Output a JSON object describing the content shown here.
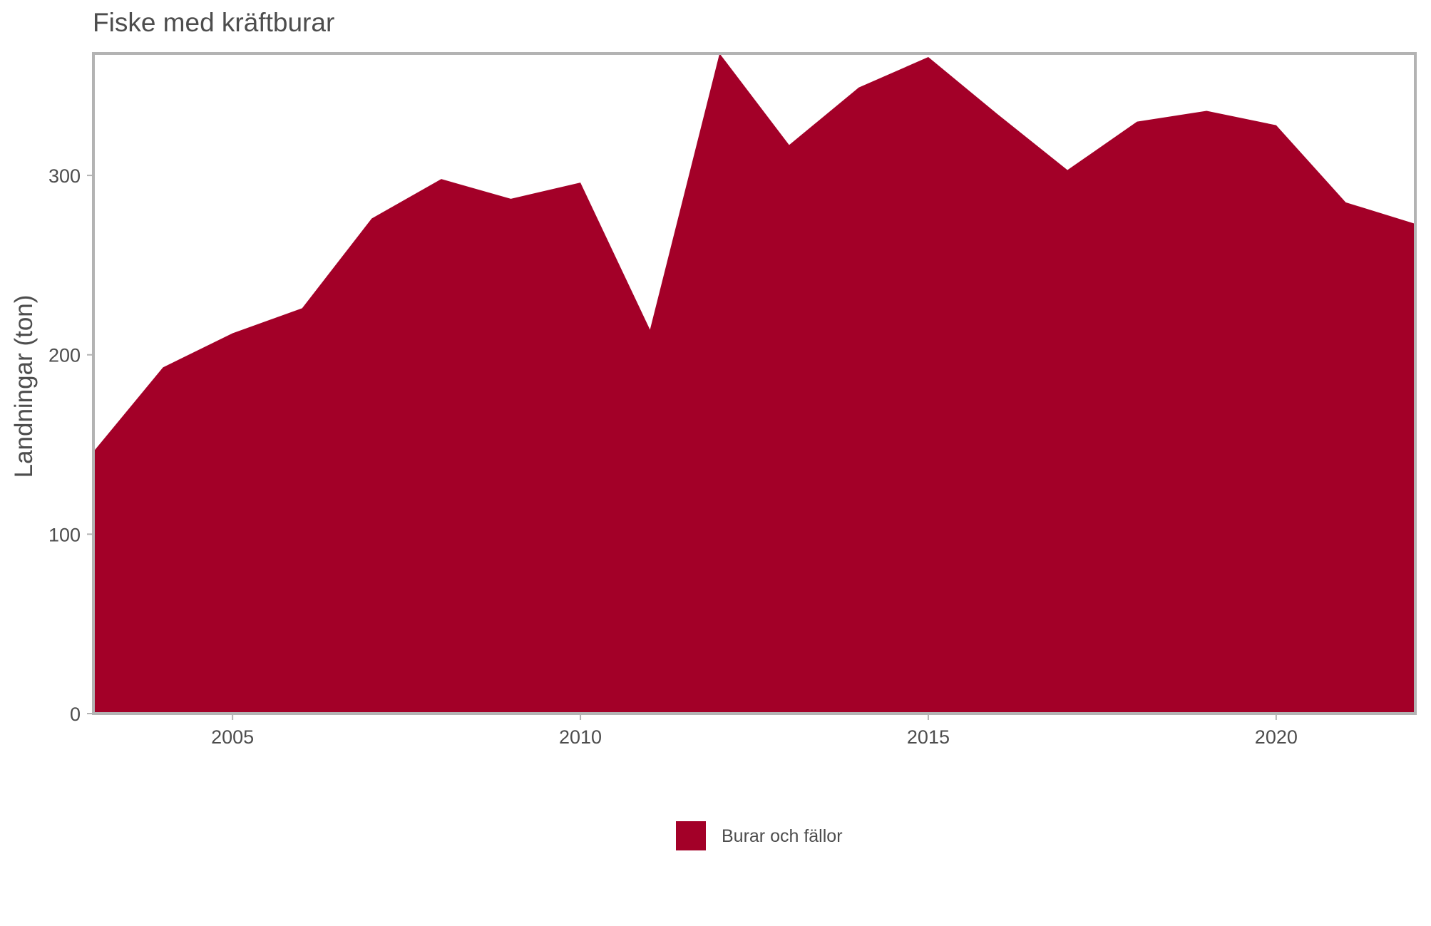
{
  "chart_data": {
    "type": "area",
    "title": "Fiske med kräftburar",
    "xlabel": "",
    "ylabel": "Landningar (ton)",
    "x": [
      2003,
      2004,
      2005,
      2006,
      2007,
      2008,
      2009,
      2010,
      2011,
      2012,
      2013,
      2014,
      2015,
      2016,
      2017,
      2018,
      2019,
      2020,
      2021,
      2022
    ],
    "series": [
      {
        "name": "Burar och fällor",
        "color": "#a30028",
        "values": [
          146,
          193,
          212,
          226,
          276,
          298,
          287,
          296,
          214,
          368,
          317,
          349,
          366,
          334,
          303,
          330,
          336,
          328,
          285,
          273
        ]
      }
    ],
    "xlim": [
      2003,
      2022
    ],
    "ylim": [
      0,
      368
    ],
    "xticks": [
      2005,
      2010,
      2015,
      2020
    ],
    "yticks": [
      0,
      100,
      200,
      300
    ],
    "grid": false,
    "legend_position": "bottom",
    "panel_border_color": "#b3b3b3"
  }
}
